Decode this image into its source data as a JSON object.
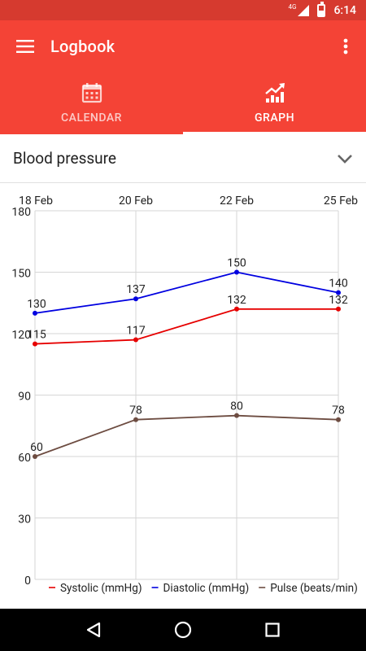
{
  "status_bar": {
    "network": "4G",
    "time": "6:14"
  },
  "app_bar": {
    "title": "Logbook",
    "menu_icon": "hamburger-menu-icon",
    "overflow_icon": "more-vert-icon",
    "tabs": [
      {
        "label": "CALENDAR",
        "icon": "calendar-icon",
        "active": false
      },
      {
        "label": "GRAPH",
        "icon": "trending-up-icon",
        "active": true
      }
    ],
    "color": "#f44336",
    "status_color": "#d63a2f"
  },
  "selector": {
    "value": "Blood pressure",
    "icon": "chevron-down-icon"
  },
  "chart_data": {
    "type": "line",
    "categories": [
      "18 Feb",
      "20 Feb",
      "22 Feb",
      "25 Feb"
    ],
    "ylim": [
      0,
      180
    ],
    "yticks": [
      0,
      30,
      60,
      90,
      120,
      150,
      180
    ],
    "grid": true,
    "legend_position": "bottom",
    "series": [
      {
        "name": "Systolic (mmHg)",
        "values": [
          115,
          117,
          132,
          132
        ],
        "color": "#e60000"
      },
      {
        "name": "Diastolic (mmHg)",
        "values": [
          130,
          137,
          150,
          140
        ],
        "color": "#0000e0"
      },
      {
        "name": "Pulse (beats/min)",
        "values": [
          60,
          78,
          80,
          78
        ],
        "color": "#6d4c41"
      }
    ]
  },
  "nav_bar": {
    "back_icon": "back-triangle-icon",
    "home_icon": "home-circle-icon",
    "recents_icon": "recents-square-icon"
  }
}
